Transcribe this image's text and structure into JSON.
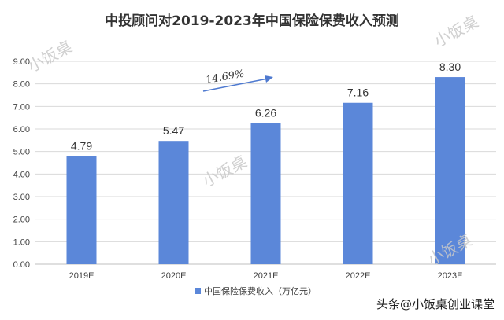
{
  "chart_data": {
    "type": "bar",
    "title": "中投顾问对2019-2023年中国保险保费收入预测",
    "categories": [
      "2019E",
      "2020E",
      "2021E",
      "2022E",
      "2023E"
    ],
    "series": [
      {
        "name": "中国保险保费收入（万亿元）",
        "values": [
          4.79,
          5.47,
          6.26,
          7.16,
          8.3
        ],
        "labels": [
          "4.79",
          "5.47",
          "6.26",
          "7.16",
          "8.30"
        ],
        "color": "#5b87d9"
      }
    ],
    "ylim": [
      0,
      9
    ],
    "yticks": [
      "0.00",
      "1.00",
      "2.00",
      "3.00",
      "4.00",
      "5.00",
      "6.00",
      "7.00",
      "8.00",
      "9.00"
    ],
    "grid": true,
    "legend_position": "bottom",
    "annotation": {
      "text": "14.69%",
      "color": "#4f7ad0"
    },
    "watermarks": [
      "小饭桌",
      "小饭桌",
      "小饭桌",
      "小饭桌"
    ]
  },
  "footer": {
    "source_text": "头条@小饭桌创业课堂"
  },
  "colors": {
    "grid": "#d9d9d9",
    "axis": "#bfbfbf",
    "text": "#404040",
    "title": "#333333",
    "watermark": "#c8c8c8"
  }
}
